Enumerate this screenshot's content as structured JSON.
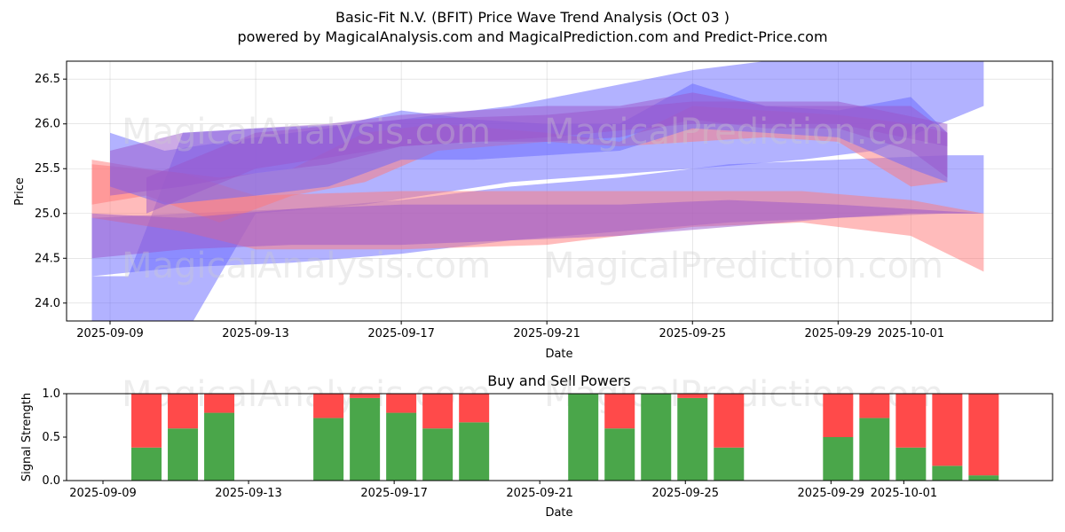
{
  "title_line1": "Basic-Fit N.V. (BFIT) Price Wave Trend Analysis (Oct 03 )",
  "title_line2": "powered by MagicalAnalysis.com and MagicalPrediction.com and Predict-Price.com",
  "watermarks": [
    "MagicalAnalysis.com",
    "MagicalPrediction.com"
  ],
  "colors": {
    "buy": "#4aa64a",
    "sell": "#ff4a4a",
    "blue_band": "#6666ff",
    "red_band": "#ff7777",
    "purple_band": "#9955cc"
  },
  "chart_data": [
    {
      "type": "area",
      "title": "",
      "xlabel": "Date",
      "ylabel": "Price",
      "ylim": [
        23.8,
        26.7
      ],
      "x_start": "2025-09-08",
      "x_end": "2025-10-05",
      "x_ticks": [
        "2025-09-09",
        "2025-09-13",
        "2025-09-17",
        "2025-09-21",
        "2025-09-25",
        "2025-09-29",
        "2025-10-01"
      ],
      "x_tick_days": [
        1,
        5,
        9,
        13,
        17,
        21,
        23
      ],
      "y_ticks": [
        24.0,
        24.5,
        25.0,
        25.5,
        26.0,
        26.5
      ],
      "bands": [
        {
          "color": "blue",
          "x": [
            0.5,
            1.5,
            3,
            5,
            8,
            12,
            17,
            20,
            22,
            25
          ],
          "upper": [
            24.3,
            24.3,
            25.9,
            25.95,
            26.0,
            26.2,
            26.6,
            26.75,
            26.72,
            26.72
          ],
          "lower": [
            23.5,
            23.5,
            23.6,
            25.0,
            25.1,
            25.35,
            25.5,
            25.6,
            25.7,
            26.2
          ]
        },
        {
          "color": "blue",
          "x": [
            0.5,
            3,
            6,
            9,
            12,
            15,
            18,
            21,
            24,
            25
          ],
          "upper": [
            24.95,
            25.0,
            25.05,
            25.15,
            25.3,
            25.4,
            25.55,
            25.6,
            25.65,
            25.65
          ],
          "lower": [
            24.3,
            24.4,
            24.45,
            24.55,
            24.7,
            24.8,
            24.9,
            24.95,
            25.0,
            25.0
          ]
        },
        {
          "color": "red",
          "x": [
            0.5,
            3,
            5,
            9,
            13,
            17,
            20,
            23,
            25
          ],
          "upper": [
            25.55,
            25.45,
            25.2,
            25.25,
            25.25,
            25.25,
            25.25,
            25.15,
            25.0
          ],
          "lower": [
            24.95,
            24.8,
            24.6,
            24.6,
            24.65,
            24.85,
            24.9,
            24.75,
            24.35
          ]
        },
        {
          "color": "red",
          "x": [
            0.5,
            2,
            4,
            6,
            8,
            10,
            13,
            15,
            17,
            19,
            21,
            23,
            24
          ],
          "upper": [
            25.6,
            25.5,
            25.4,
            25.5,
            25.9,
            26.0,
            25.9,
            25.8,
            26.2,
            26.15,
            26.1,
            26.0,
            25.9
          ],
          "lower": [
            25.1,
            25.2,
            24.9,
            25.2,
            25.35,
            25.7,
            25.8,
            25.75,
            25.8,
            25.85,
            25.8,
            25.3,
            25.35
          ]
        },
        {
          "color": "blue",
          "x": [
            1,
            2.5,
            5,
            7,
            9,
            11,
            13,
            15,
            17,
            19,
            21,
            23,
            24
          ],
          "upper": [
            25.9,
            25.7,
            25.85,
            25.95,
            26.15,
            26.05,
            26.0,
            26.0,
            26.45,
            26.2,
            26.15,
            26.3,
            25.9
          ],
          "lower": [
            25.3,
            25.1,
            25.2,
            25.3,
            25.6,
            25.6,
            25.65,
            25.7,
            25.95,
            25.9,
            25.85,
            25.5,
            25.35
          ]
        },
        {
          "color": "purple",
          "x": [
            1,
            3,
            5,
            7,
            9,
            11,
            13,
            15,
            17,
            19,
            21,
            23,
            24
          ],
          "upper": [
            25.7,
            25.9,
            25.95,
            26.0,
            26.1,
            26.15,
            26.2,
            26.2,
            26.35,
            26.2,
            26.2,
            26.2,
            25.9
          ],
          "lower": [
            25.2,
            25.3,
            25.45,
            25.55,
            25.75,
            25.8,
            25.8,
            25.85,
            26.05,
            25.95,
            25.95,
            25.7,
            25.4
          ]
        },
        {
          "color": "purple",
          "x": [
            0.5,
            3,
            6,
            9,
            12,
            15,
            18,
            21,
            23,
            25
          ],
          "upper": [
            25.0,
            24.95,
            25.05,
            25.1,
            25.1,
            25.1,
            25.15,
            25.1,
            25.05,
            25.0
          ],
          "lower": [
            24.5,
            24.6,
            24.65,
            24.65,
            24.7,
            24.75,
            24.85,
            24.95,
            25.0,
            25.0
          ]
        },
        {
          "color": "purple",
          "x": [
            2,
            5,
            9,
            13,
            17,
            21,
            24
          ],
          "upper": [
            25.4,
            25.9,
            26.05,
            26.1,
            26.25,
            26.25,
            26.0
          ],
          "lower": [
            25.0,
            25.5,
            25.75,
            25.85,
            26.0,
            26.0,
            25.75
          ]
        }
      ]
    },
    {
      "type": "bar",
      "title": "Buy and Sell Powers",
      "xlabel": "Date",
      "ylabel": "Signal Strength",
      "ylim": [
        0,
        1.0
      ],
      "x_start": "2025-09-08",
      "x_end": "2025-10-05",
      "x_ticks": [
        "2025-09-09",
        "2025-09-13",
        "2025-09-17",
        "2025-09-21",
        "2025-09-25",
        "2025-09-29",
        "2025-10-01"
      ],
      "x_tick_days": [
        1,
        5,
        9,
        13,
        17,
        21,
        23
      ],
      "y_ticks": [
        "0.0",
        "0.5",
        "1.0"
      ],
      "categories": [
        "2025-09-10",
        "2025-09-11",
        "2025-09-12",
        "2025-09-15",
        "2025-09-16",
        "2025-09-17",
        "2025-09-18",
        "2025-09-19",
        "2025-09-22",
        "2025-09-23",
        "2025-09-24",
        "2025-09-25",
        "2025-09-26",
        "2025-09-29",
        "2025-09-30",
        "2025-10-01",
        "2025-10-02",
        "2025-10-03"
      ],
      "category_days": [
        2,
        3,
        4,
        7,
        8,
        9,
        10,
        11,
        14,
        15,
        16,
        17,
        18,
        21,
        22,
        23,
        24,
        25
      ],
      "series": [
        {
          "name": "Buy",
          "values": [
            0.38,
            0.6,
            0.78,
            0.72,
            0.95,
            0.78,
            0.6,
            0.67,
            1.0,
            0.6,
            1.0,
            0.95,
            0.38,
            0.5,
            0.72,
            0.38,
            0.17,
            0.06
          ]
        },
        {
          "name": "Sell",
          "values": [
            0.62,
            0.4,
            0.22,
            0.28,
            0.05,
            0.22,
            0.4,
            0.33,
            0.0,
            0.4,
            0.0,
            0.05,
            0.62,
            0.5,
            0.28,
            0.62,
            0.83,
            0.94
          ]
        }
      ]
    }
  ]
}
